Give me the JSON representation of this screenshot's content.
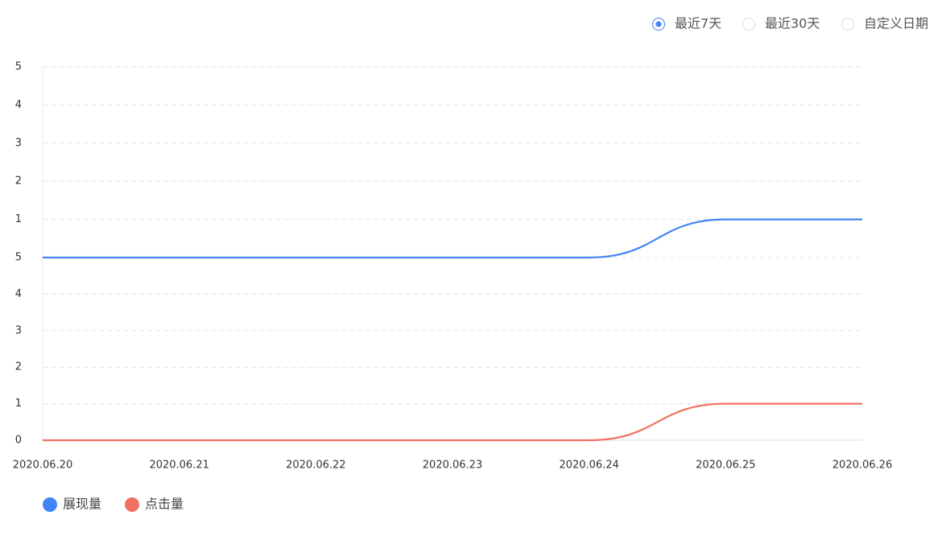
{
  "controls": {
    "options": [
      "最近7天",
      "最近30天",
      "自定义日期"
    ],
    "selected": 0
  },
  "chart_data": {
    "type": "line",
    "categories": [
      "2020.06.20",
      "2020.06.21",
      "2020.06.22",
      "2020.06.23",
      "2020.06.24",
      "2020.06.25",
      "2020.06.26"
    ],
    "series": [
      {
        "name": "展现量",
        "color": "#4284f3",
        "axis": "y2",
        "values": [
          0,
          0,
          0,
          0,
          0,
          1,
          1
        ]
      },
      {
        "name": "点击量",
        "color": "#f2705f",
        "values": [
          0,
          0,
          0,
          0,
          0,
          1,
          1
        ]
      }
    ],
    "ylim": [
      0,
      5
    ],
    "yticks": [
      0,
      1,
      2,
      3,
      4,
      5
    ],
    "y2lim": [
      0,
      5
    ],
    "y2ticks": [
      1,
      2,
      3,
      4,
      5
    ],
    "grid": true,
    "smooth": true,
    "legend": "bottom-left"
  }
}
